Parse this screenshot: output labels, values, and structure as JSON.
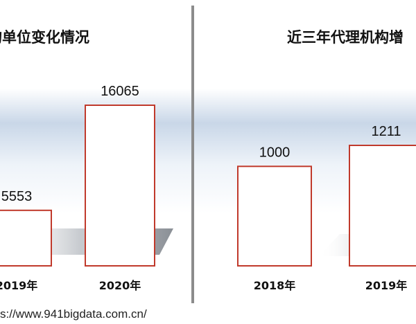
{
  "panels": [
    {
      "title": "构单位变化情况"
    },
    {
      "title": "近三年代理机构增"
    }
  ],
  "chart_data": [
    {
      "type": "bar",
      "title": "构单位变化情况",
      "categories": [
        "2019年",
        "2020年"
      ],
      "values": [
        5553,
        16065
      ],
      "bar_color": "#c0392b"
    },
    {
      "type": "bar",
      "title": "近三年代理机构增",
      "categories": [
        "2018年",
        "2019年"
      ],
      "values": [
        1000,
        1211
      ],
      "bar_color": "#c0392b"
    }
  ],
  "source": "s://www.941bigdata.com.cn/"
}
